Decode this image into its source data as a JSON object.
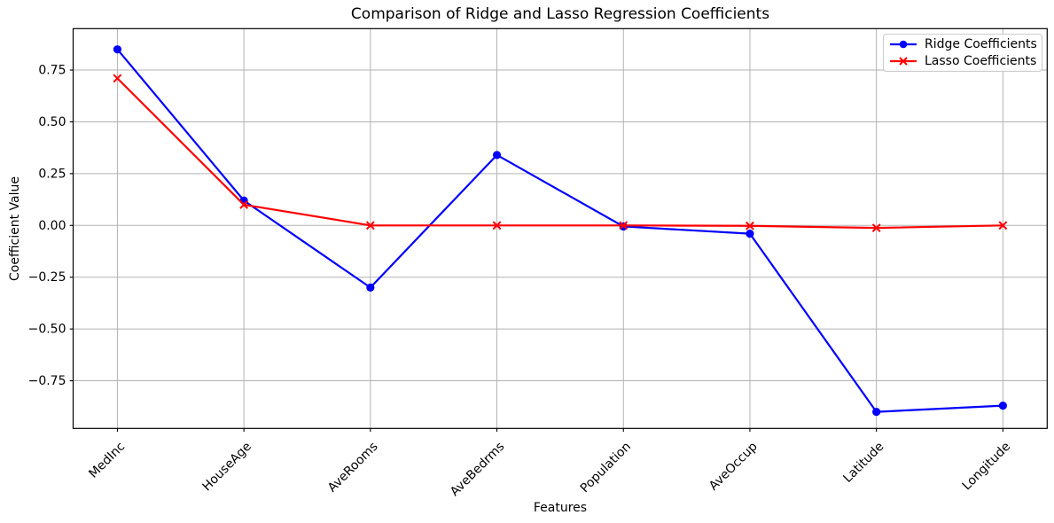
{
  "chart_data": {
    "type": "line",
    "title": "Comparison of Ridge and Lasso Regression Coefficients",
    "xlabel": "Features",
    "ylabel": "Coefficient Value",
    "categories": [
      "MedInc",
      "HouseAge",
      "AveRooms",
      "AveBedrms",
      "Population",
      "AveOccup",
      "Latitude",
      "Longitude"
    ],
    "series": [
      {
        "name": "Ridge Coefficients",
        "color": "#0000ff",
        "marker": "circle",
        "values": [
          0.85,
          0.12,
          -0.3,
          0.34,
          -0.005,
          -0.04,
          -0.9,
          -0.87
        ]
      },
      {
        "name": "Lasso Coefficients",
        "color": "#ff0000",
        "marker": "x",
        "values": [
          0.71,
          0.1,
          0.0,
          0.0,
          0.0,
          -0.002,
          -0.012,
          0.0
        ]
      }
    ],
    "yticks": [
      0.75,
      0.5,
      0.25,
      0.0,
      -0.25,
      -0.5,
      -0.75
    ],
    "ylim": [
      -0.98,
      0.95
    ],
    "grid": true,
    "legend_position": "upper right"
  }
}
